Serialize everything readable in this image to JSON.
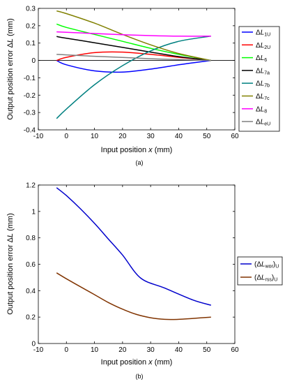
{
  "chart_data": [
    {
      "panel": "(a)",
      "type": "line",
      "title": "",
      "xlabel": "Input position x (mm)",
      "ylabel": "Output position error ΔL (mm)",
      "xlim": [
        -10,
        60
      ],
      "ylim": [
        -0.4,
        0.3
      ],
      "xticks": [
        -10,
        0,
        10,
        20,
        30,
        40,
        50,
        60
      ],
      "yticks": [
        -0.4,
        -0.3,
        -0.2,
        -0.1,
        0,
        0.1,
        0.2,
        0.3
      ],
      "grid": false,
      "legend_position": "outside-right",
      "series": [
        {
          "name": "ΔL1U",
          "color": "#0000ff",
          "x": [
            -3.5,
            0,
            10,
            20,
            30,
            40,
            51.5
          ],
          "y": [
            0,
            -0.025,
            -0.06,
            -0.067,
            -0.05,
            -0.025,
            0
          ]
        },
        {
          "name": "ΔL2U",
          "color": "#ff0000",
          "x": [
            -3.5,
            0,
            10,
            20,
            30,
            40,
            51.5
          ],
          "y": [
            0,
            0.018,
            0.045,
            0.048,
            0.035,
            0.018,
            0
          ]
        },
        {
          "name": "ΔL6",
          "color": "#00ff00",
          "x": [
            -3.5,
            0,
            10,
            20,
            30,
            40,
            51.5
          ],
          "y": [
            0.21,
            0.19,
            0.15,
            0.11,
            0.07,
            0.035,
            0
          ]
        },
        {
          "name": "ΔL7a",
          "color": "#000000",
          "x": [
            -3.5,
            0,
            10,
            20,
            30,
            40,
            51.5
          ],
          "y": [
            0.138,
            0.128,
            0.102,
            0.075,
            0.048,
            0.022,
            0
          ]
        },
        {
          "name": "ΔL7b",
          "color": "#008080",
          "x": [
            -3.5,
            0,
            10,
            20,
            30,
            40,
            51.5
          ],
          "y": [
            -0.335,
            -0.28,
            -0.14,
            -0.03,
            0.055,
            0.11,
            0.14
          ]
        },
        {
          "name": "ΔL7c",
          "color": "#808000",
          "x": [
            -3.5,
            0,
            10,
            20,
            30,
            40,
            51.5
          ],
          "y": [
            0.285,
            0.27,
            0.215,
            0.15,
            0.09,
            0.04,
            0
          ]
        },
        {
          "name": "ΔL8",
          "color": "#ff00ff",
          "x": [
            -3.5,
            0,
            10,
            20,
            30,
            40,
            51.5
          ],
          "y": [
            0.165,
            0.162,
            0.155,
            0.148,
            0.143,
            0.14,
            0.14
          ]
        },
        {
          "name": "ΔLeU",
          "color": "#808080",
          "x": [
            -3.5,
            0,
            10,
            20,
            30,
            40,
            51.5
          ],
          "y": [
            0.035,
            0.032,
            0.024,
            0.017,
            0.01,
            0.005,
            0
          ]
        }
      ]
    },
    {
      "panel": "(b)",
      "type": "line",
      "title": "",
      "xlabel": "Input position x (mm)",
      "ylabel": "Output position error ΔL (mm)",
      "xlim": [
        -10,
        60
      ],
      "ylim": [
        0,
        1.2
      ],
      "xticks": [
        -10,
        0,
        10,
        20,
        30,
        40,
        50,
        60
      ],
      "yticks": [
        0,
        0.2,
        0.4,
        0.6,
        0.8,
        1,
        1.2
      ],
      "grid": false,
      "legend_position": "outside-right",
      "series": [
        {
          "name": "(ΔLwor)U",
          "color": "#0000cc",
          "x": [
            -3.5,
            0,
            5,
            10,
            15,
            20,
            26.5,
            35,
            45,
            51.5
          ],
          "y": [
            1.18,
            1.12,
            1.02,
            0.91,
            0.79,
            0.67,
            0.495,
            0.42,
            0.33,
            0.29
          ]
        },
        {
          "name": "(ΔLrss)U",
          "color": "#803300",
          "x": [
            -3.5,
            0,
            5,
            10,
            15,
            20,
            25,
            30,
            35,
            40,
            45,
            51.5
          ],
          "y": [
            0.535,
            0.49,
            0.43,
            0.37,
            0.31,
            0.26,
            0.22,
            0.195,
            0.183,
            0.183,
            0.19,
            0.2
          ]
        }
      ]
    }
  ]
}
